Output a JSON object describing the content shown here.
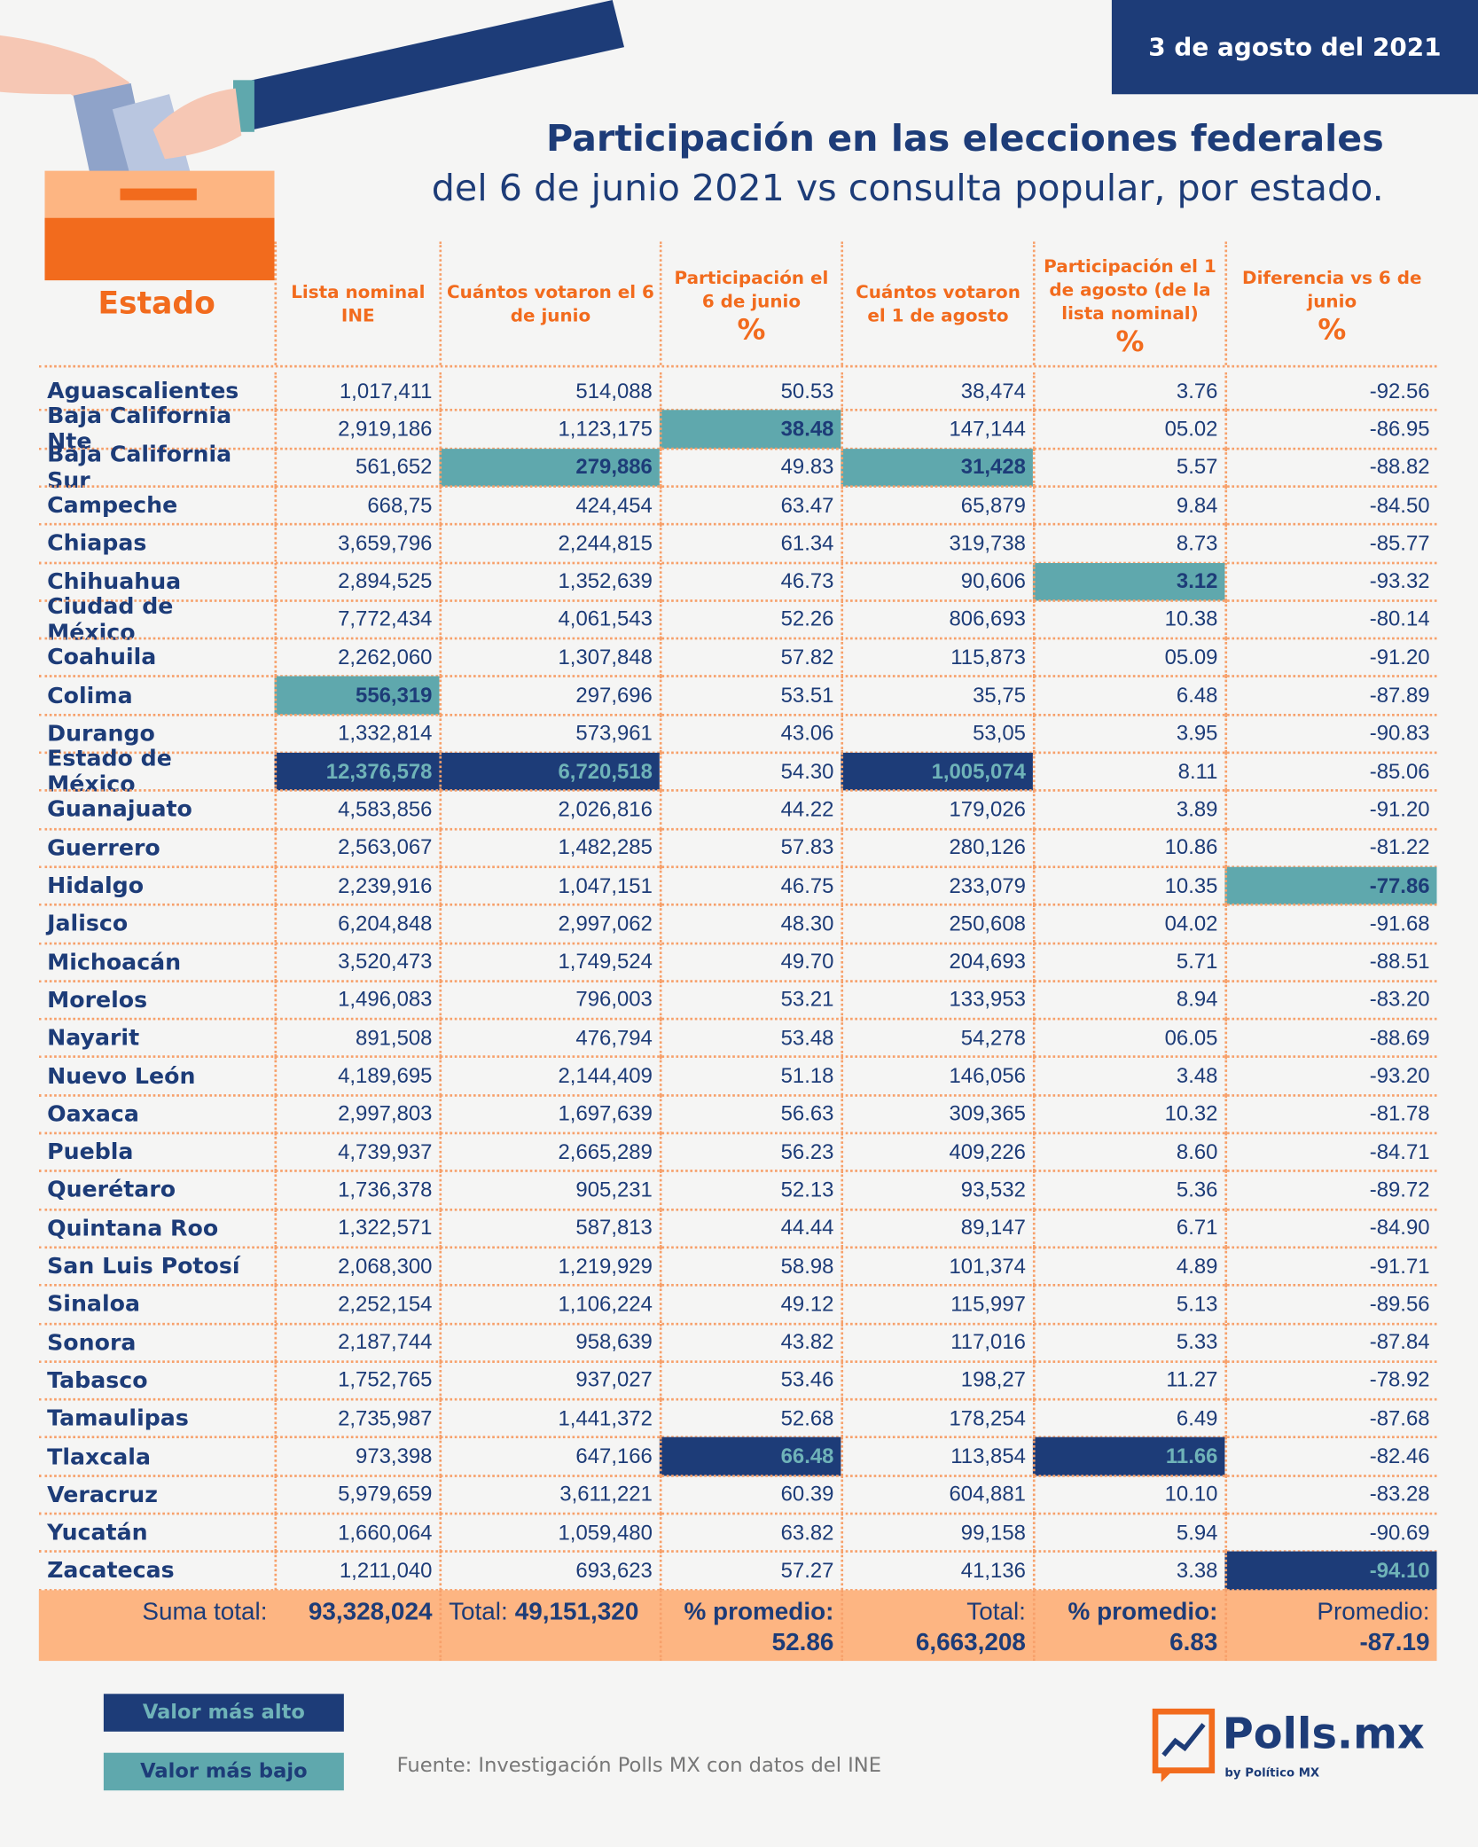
{
  "header": {
    "date": "3 de agosto del 2021",
    "title_bold": "Participación en las elecciones federales",
    "title_rest": "del 6 de junio 2021 vs consulta popular, por estado."
  },
  "table": {
    "columns": [
      {
        "label": "Estado"
      },
      {
        "label": "Lista nominal INE"
      },
      {
        "label": "Cuántos votaron el 6 de junio"
      },
      {
        "label": "Participación el 6 de junio",
        "unit": "%"
      },
      {
        "label": "Cuántos votaron el 1 de agosto"
      },
      {
        "label": "Participación el 1 de agosto (de la lista nominal)",
        "unit": "%"
      },
      {
        "label": "Diferencia vs 6 de junio",
        "unit": "%"
      }
    ],
    "rows": [
      [
        "Aguascalientes",
        "1,017,411",
        "514,088",
        "50.53",
        "38,474",
        "3.76",
        "-92.56"
      ],
      [
        "Baja California Nte",
        "2,919,186",
        "1,123,175",
        "38.48",
        "147,144",
        "05.02",
        "-86.95"
      ],
      [
        "Baja California Sur",
        "561,652",
        "279,886",
        "49.83",
        "31,428",
        "5.57",
        "-88.82"
      ],
      [
        "Campeche",
        "668,75",
        "424,454",
        "63.47",
        "65,879",
        "9.84",
        "-84.50"
      ],
      [
        "Chiapas",
        "3,659,796",
        "2,244,815",
        "61.34",
        "319,738",
        "8.73",
        "-85.77"
      ],
      [
        "Chihuahua",
        "2,894,525",
        "1,352,639",
        "46.73",
        "90,606",
        "3.12",
        "-93.32"
      ],
      [
        "Ciudad de México",
        "7,772,434",
        "4,061,543",
        "52.26",
        "806,693",
        "10.38",
        "-80.14"
      ],
      [
        "Coahuila",
        "2,262,060",
        "1,307,848",
        "57.82",
        "115,873",
        "05.09",
        "-91.20"
      ],
      [
        "Colima",
        "556,319",
        "297,696",
        "53.51",
        "35,75",
        "6.48",
        "-87.89"
      ],
      [
        "Durango",
        "1,332,814",
        "573,961",
        "43.06",
        "53,05",
        "3.95",
        "-90.83"
      ],
      [
        "Estado de México",
        "12,376,578",
        "6,720,518",
        "54.30",
        "1,005,074",
        "8.11",
        "-85.06"
      ],
      [
        "Guanajuato",
        "4,583,856",
        "2,026,816",
        "44.22",
        "179,026",
        "3.89",
        "-91.20"
      ],
      [
        "Guerrero",
        "2,563,067",
        "1,482,285",
        "57.83",
        "280,126",
        "10.86",
        "-81.22"
      ],
      [
        "Hidalgo",
        "2,239,916",
        "1,047,151",
        "46.75",
        "233,079",
        "10.35",
        "-77.86"
      ],
      [
        "Jalisco",
        "6,204,848",
        "2,997,062",
        "48.30",
        "250,608",
        "04.02",
        "-91.68"
      ],
      [
        "Michoacán",
        "3,520,473",
        "1,749,524",
        "49.70",
        "204,693",
        "5.71",
        "-88.51"
      ],
      [
        "Morelos",
        "1,496,083",
        "796,003",
        "53.21",
        "133,953",
        "8.94",
        "-83.20"
      ],
      [
        "Nayarit",
        "891,508",
        "476,794",
        "53.48",
        "54,278",
        "06.05",
        "-88.69"
      ],
      [
        "Nuevo León",
        "4,189,695",
        "2,144,409",
        "51.18",
        "146,056",
        "3.48",
        "-93.20"
      ],
      [
        "Oaxaca",
        "2,997,803",
        "1,697,639",
        "56.63",
        "309,365",
        "10.32",
        "-81.78"
      ],
      [
        "Puebla",
        "4,739,937",
        "2,665,289",
        "56.23",
        "409,226",
        "8.60",
        "-84.71"
      ],
      [
        "Querétaro",
        "1,736,378",
        "905,231",
        "52.13",
        "93,532",
        "5.36",
        "-89.72"
      ],
      [
        "Quintana Roo",
        "1,322,571",
        "587,813",
        "44.44",
        "89,147",
        "6.71",
        "-84.90"
      ],
      [
        "San Luis Potosí",
        "2,068,300",
        "1,219,929",
        "58.98",
        "101,374",
        "4.89",
        "-91.71"
      ],
      [
        "Sinaloa",
        "2,252,154",
        "1,106,224",
        "49.12",
        "115,997",
        "5.13",
        "-89.56"
      ],
      [
        "Sonora",
        "2,187,744",
        "958,639",
        "43.82",
        "117,016",
        "5.33",
        "-87.84"
      ],
      [
        "Tabasco",
        "1,752,765",
        "937,027",
        "53.46",
        "198,27",
        "11.27",
        "-78.92"
      ],
      [
        "Tamaulipas",
        "2,735,987",
        "1,441,372",
        "52.68",
        "178,254",
        "6.49",
        "-87.68"
      ],
      [
        "Tlaxcala",
        "973,398",
        "647,166",
        "66.48",
        "113,854",
        "11.66",
        "-82.46"
      ],
      [
        "Veracruz",
        "5,979,659",
        "3,611,221",
        "60.39",
        "604,881",
        "10.10",
        "-83.28"
      ],
      [
        "Yucatán",
        "1,660,064",
        "1,059,480",
        "63.82",
        "99,158",
        "5.94",
        "-90.69"
      ],
      [
        "Zacatecas",
        "1,211,040",
        "693,623",
        "57.27",
        "41,136",
        "3.38",
        "-94.10"
      ]
    ],
    "totals": [
      {
        "label": "Suma total:",
        "value": "93,328,024"
      },
      {
        "label": "Total:",
        "value": "49,151,320"
      },
      {
        "label": "% promedio:",
        "value": "52.86"
      },
      {
        "label": "Total:",
        "value": "6,663,208"
      },
      {
        "label": "% promedio:",
        "value": "6.83"
      },
      {
        "label": "Promedio:",
        "value": "-87.19"
      }
    ]
  },
  "legend": {
    "high": "Valor más alto",
    "low": "Valor más bajo"
  },
  "source": "Fuente: Investigación Polls MX con datos del INE",
  "logo": {
    "name": "Polls.mx",
    "by": "by Político MX"
  }
}
